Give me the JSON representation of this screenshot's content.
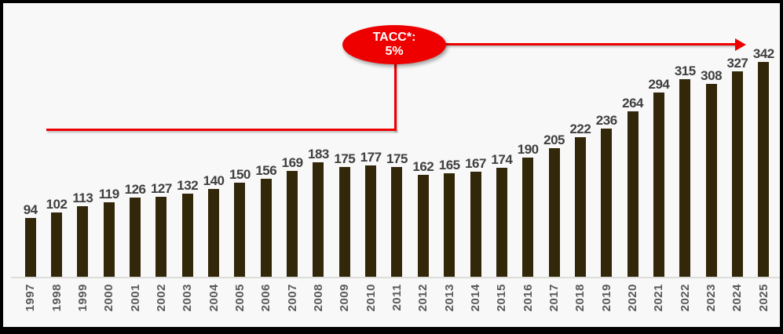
{
  "chart_data": {
    "type": "bar",
    "categories": [
      "1997",
      "1998",
      "1999",
      "2000",
      "2001",
      "2002",
      "2003",
      "2004",
      "2005",
      "2006",
      "2007",
      "2008",
      "2009",
      "2010",
      "2011",
      "2012",
      "2013",
      "2014",
      "2015",
      "2016",
      "2017",
      "2018",
      "2019",
      "2020",
      "2021",
      "2022",
      "2023",
      "2024",
      "2025"
    ],
    "values": [
      94,
      102,
      113,
      119,
      126,
      127,
      132,
      140,
      150,
      156,
      169,
      183,
      175,
      177,
      175,
      162,
      165,
      167,
      174,
      190,
      205,
      222,
      236,
      264,
      294,
      315,
      308,
      327,
      342
    ],
    "title": "",
    "xlabel": "",
    "ylabel": "",
    "ylim": [
      0,
      436
    ],
    "grid": false,
    "legend": false,
    "data_labels": true,
    "bar_color": "#33270A",
    "value_label_color": "#3F3F3F",
    "axis_label_color": "#595959",
    "background_color": "#F8F8F8"
  },
  "annotation": {
    "line1": "TACC*:",
    "line2": "5%",
    "shape": "ellipse-with-arrow",
    "fill_color": "#EE0000",
    "text_color": "#FFFFFF"
  }
}
